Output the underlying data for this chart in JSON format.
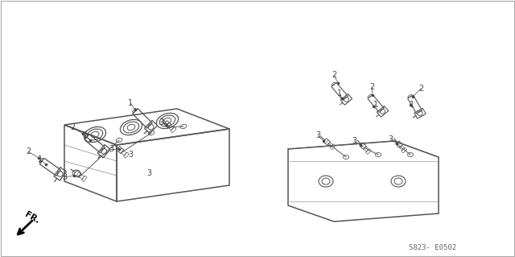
{
  "bg_color": "#ffffff",
  "line_color": "#555555",
  "dark_line": "#333333",
  "text_color": "#444444",
  "reference_code": "S823- E0502",
  "fr_label": "FR.",
  "fig_width": 6.4,
  "fig_height": 3.19,
  "dpi": 100,
  "border_color": "#cccccc"
}
